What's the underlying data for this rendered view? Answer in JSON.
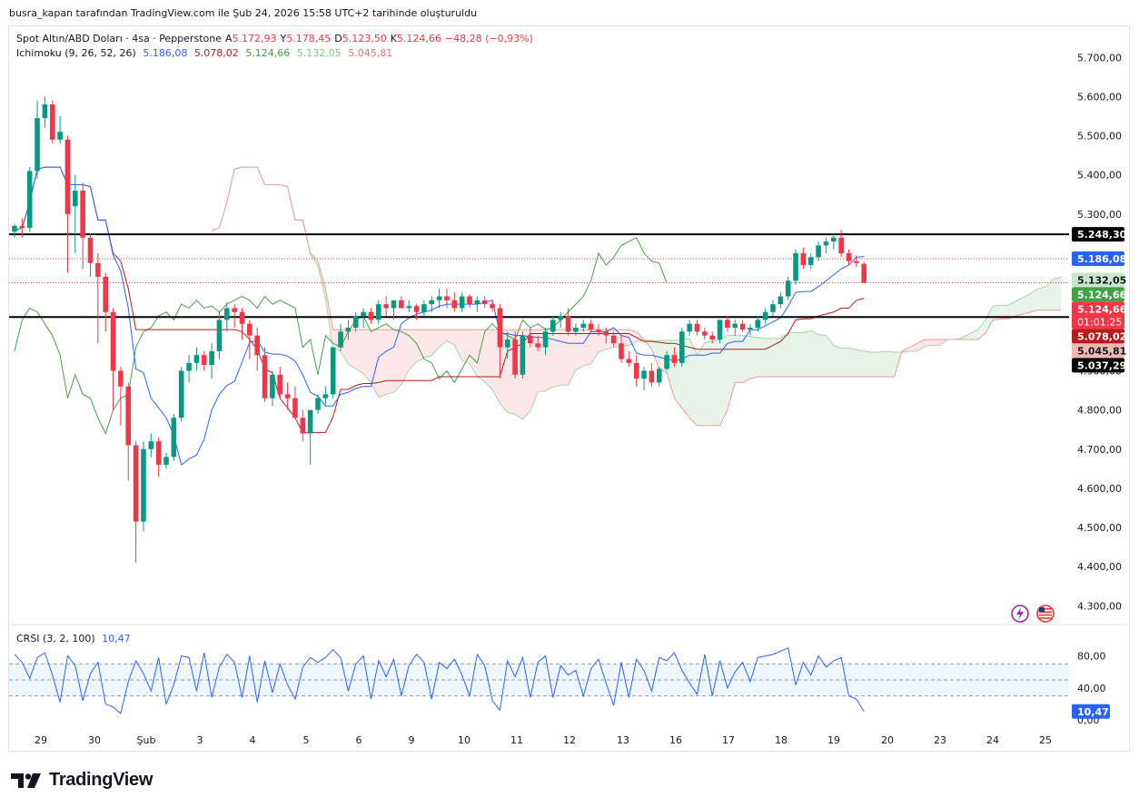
{
  "caption": "busra_kapan tarafından TradingView.com ile Şub 24, 2026 15:58 UTC+2 tarihinde oluşturuldu",
  "symbol": {
    "title": "Spot Altın/ABD Doları · 4sa · Pepperstone",
    "open_label": "A",
    "open": "5.172,93",
    "high_label": "Y",
    "high": "5.178,45",
    "low_label": "D",
    "low": "5.123,50",
    "close_label": "K",
    "close": "5.124,66",
    "change": "−48,28 (−0,93%)"
  },
  "ichimoku": {
    "title": "Ichimoku (9, 26, 52, 26)",
    "values": [
      "5.186,08",
      "5.078,02",
      "5.124,66",
      "5.132,05",
      "5.045,81"
    ],
    "colors": [
      "#2962ff",
      "#b71c1c",
      "#43a047",
      "#a5d6a7",
      "#ef9a9a"
    ]
  },
  "crsi": {
    "title": "CRSI (3, 2, 100)",
    "value": "10,47",
    "axis_ticks": [
      {
        "v": 80,
        "label": "80,00"
      },
      {
        "v": 40,
        "label": "40,00"
      },
      {
        "v": 0,
        "label": "0,00"
      }
    ],
    "band": [
      30,
      70
    ]
  },
  "price_axis": {
    "ticks": [
      {
        "v": 5700,
        "label": "5.700,00"
      },
      {
        "v": 5600,
        "label": "5.600,00"
      },
      {
        "v": 5500,
        "label": "5.500,00"
      },
      {
        "v": 5400,
        "label": "5.400,00"
      },
      {
        "v": 5300,
        "label": "5.300,00"
      },
      {
        "v": 4900,
        "label": "4.900,00"
      },
      {
        "v": 4800,
        "label": "4.800,00"
      },
      {
        "v": 4700,
        "label": "4.700,00"
      },
      {
        "v": 4600,
        "label": "4.600,00"
      },
      {
        "v": 4500,
        "label": "4.500,00"
      },
      {
        "v": 4400,
        "label": "4.400,00"
      },
      {
        "v": 4300,
        "label": "4.300,00"
      }
    ],
    "badges": [
      {
        "v": 5248.3,
        "label": "5.248,30",
        "bg": "#000000",
        "fg": "#ffffff"
      },
      {
        "v": 5186.08,
        "label": "5.186,08",
        "bg": "#2962ff",
        "fg": "#ffffff"
      },
      {
        "v": 5132.05,
        "label": "5.132,05",
        "bg": "#c8e6c9",
        "fg": "#131722"
      },
      {
        "v": 5124.66,
        "label": "5.124,66",
        "bg": "#43a047",
        "fg": "#ffffff"
      },
      {
        "v": 5124.66,
        "label": "5.124,66",
        "sub": "01:01:25",
        "bg": "#f23645",
        "fg": "#ffffff"
      },
      {
        "v": 5078.02,
        "label": "5.078,02",
        "bg": "#b71c1c",
        "fg": "#ffffff"
      },
      {
        "v": 5045.81,
        "label": "5.045,81",
        "bg": "#f5b7b1",
        "fg": "#131722"
      },
      {
        "v": 5037.29,
        "label": "5.037,29",
        "bg": "#000000",
        "fg": "#ffffff"
      }
    ]
  },
  "time_axis": [
    "29",
    "30",
    "Şub",
    "3",
    "4",
    "5",
    "6",
    "9",
    "10",
    "11",
    "12",
    "13",
    "16",
    "17",
    "18",
    "19",
    "20",
    "23",
    "24",
    "25"
  ],
  "horizontal_levels": [
    5248.3,
    5037.29
  ],
  "brand": "TradingView",
  "chart_data": {
    "type": "candlestick",
    "title": "Spot Altın/ABD Doları · 4sa · Pepperstone",
    "ylim": [
      4280,
      5740
    ],
    "candles": [
      [
        5255,
        5275,
        5240,
        5270
      ],
      [
        5270,
        5290,
        5240,
        5265
      ],
      [
        5265,
        5420,
        5255,
        5410
      ],
      [
        5410,
        5590,
        5390,
        5545
      ],
      [
        5545,
        5600,
        5520,
        5580
      ],
      [
        5580,
        5590,
        5480,
        5490
      ],
      [
        5490,
        5550,
        5480,
        5510
      ],
      [
        5490,
        5500,
        5150,
        5300
      ],
      [
        5320,
        5400,
        5200,
        5360
      ],
      [
        5360,
        5380,
        5160,
        5240
      ],
      [
        5240,
        5250,
        5140,
        5175
      ],
      [
        5175,
        5200,
        4970,
        5140
      ],
      [
        5140,
        5150,
        5000,
        5050
      ],
      [
        5050,
        5060,
        4800,
        4900
      ],
      [
        4900,
        4910,
        4760,
        4860
      ],
      [
        4860,
        4870,
        4620,
        4710
      ],
      [
        4710,
        4720,
        4410,
        4515
      ],
      [
        4515,
        4720,
        4490,
        4700
      ],
      [
        4700,
        4740,
        4680,
        4720
      ],
      [
        4720,
        4730,
        4630,
        4660
      ],
      [
        4660,
        4690,
        4650,
        4680
      ],
      [
        4680,
        4790,
        4670,
        4780
      ],
      [
        4780,
        4910,
        4770,
        4900
      ],
      [
        4900,
        4940,
        4870,
        4920
      ],
      [
        4920,
        4960,
        4900,
        4940
      ],
      [
        4940,
        4950,
        4900,
        4915
      ],
      [
        4915,
        4970,
        4880,
        4950
      ],
      [
        4950,
        5050,
        4930,
        5030
      ],
      [
        5030,
        5075,
        5000,
        5060
      ],
      [
        5060,
        5070,
        5010,
        5050
      ],
      [
        5050,
        5060,
        4980,
        5020
      ],
      [
        5020,
        5030,
        4930,
        4990
      ],
      [
        4990,
        5010,
        4900,
        4940
      ],
      [
        4940,
        4960,
        4820,
        4830
      ],
      [
        4830,
        4900,
        4810,
        4890
      ],
      [
        4890,
        4910,
        4830,
        4840
      ],
      [
        4840,
        4870,
        4800,
        4830
      ],
      [
        4830,
        4860,
        4780,
        4780
      ],
      [
        4780,
        4800,
        4720,
        4740
      ],
      [
        4740,
        4800,
        4660,
        4800
      ],
      [
        4800,
        4840,
        4790,
        4830
      ],
      [
        4830,
        4860,
        4810,
        4840
      ],
      [
        4840,
        4960,
        4830,
        4960
      ],
      [
        4960,
        5020,
        4950,
        5000
      ],
      [
        5000,
        5030,
        4980,
        5010
      ],
      [
        5010,
        5050,
        5000,
        5040
      ],
      [
        5040,
        5060,
        5010,
        5050
      ],
      [
        5050,
        5060,
        5020,
        5030
      ],
      [
        5030,
        5080,
        5020,
        5070
      ],
      [
        5070,
        5090,
        5040,
        5060
      ],
      [
        5060,
        5080,
        5030,
        5080
      ],
      [
        5080,
        5090,
        5060,
        5060
      ],
      [
        5060,
        5080,
        5050,
        5065
      ],
      [
        5065,
        5070,
        5030,
        5050
      ],
      [
        5050,
        5080,
        5040,
        5070
      ],
      [
        5070,
        5090,
        5050,
        5080
      ],
      [
        5080,
        5110,
        5060,
        5090
      ],
      [
        5090,
        5110,
        5060,
        5080
      ],
      [
        5080,
        5100,
        5050,
        5060
      ],
      [
        5060,
        5100,
        5050,
        5090
      ],
      [
        5090,
        5095,
        5060,
        5070
      ],
      [
        5070,
        5090,
        5050,
        5080
      ],
      [
        5080,
        5090,
        5060,
        5070
      ],
      [
        5070,
        5080,
        5050,
        5060
      ],
      [
        5060,
        5070,
        4880,
        4960
      ],
      [
        4960,
        5000,
        4930,
        4980
      ],
      [
        4980,
        5000,
        4880,
        4890
      ],
      [
        4890,
        5000,
        4880,
        4990
      ],
      [
        4990,
        5010,
        4960,
        4970
      ],
      [
        4970,
        4990,
        4950,
        4960
      ],
      [
        4960,
        5010,
        4940,
        5000
      ],
      [
        5000,
        5040,
        4990,
        5030
      ],
      [
        5030,
        5050,
        5010,
        5040
      ],
      [
        5040,
        5060,
        4990,
        5000
      ],
      [
        5000,
        5020,
        4990,
        5010
      ],
      [
        5010,
        5030,
        5000,
        5020
      ],
      [
        5020,
        5030,
        5000,
        5005
      ],
      [
        5005,
        5020,
        4990,
        5000
      ],
      [
        5000,
        5010,
        4970,
        4990
      ],
      [
        4990,
        5000,
        4960,
        4970
      ],
      [
        4970,
        4990,
        4920,
        4930
      ],
      [
        4930,
        4950,
        4910,
        4920
      ],
      [
        4920,
        4940,
        4860,
        4880
      ],
      [
        4880,
        4910,
        4850,
        4900
      ],
      [
        4900,
        4920,
        4860,
        4870
      ],
      [
        4870,
        4910,
        4860,
        4905
      ],
      [
        4905,
        4950,
        4900,
        4940
      ],
      [
        4940,
        4960,
        4910,
        4920
      ],
      [
        4920,
        5010,
        4910,
        5000
      ],
      [
        5000,
        5030,
        4990,
        5020
      ],
      [
        5020,
        5030,
        4990,
        5000
      ],
      [
        5000,
        5010,
        4980,
        4990
      ],
      [
        4990,
        5000,
        4970,
        4980
      ],
      [
        4980,
        5030,
        4970,
        5030
      ],
      [
        5030,
        5040,
        5000,
        5010
      ],
      [
        5010,
        5030,
        4990,
        5020
      ],
      [
        5020,
        5030,
        5000,
        5005
      ],
      [
        5005,
        5020,
        4990,
        5010
      ],
      [
        5010,
        5040,
        5000,
        5030
      ],
      [
        5030,
        5060,
        5020,
        5050
      ],
      [
        5050,
        5080,
        5040,
        5070
      ],
      [
        5070,
        5100,
        5060,
        5090
      ],
      [
        5090,
        5140,
        5080,
        5130
      ],
      [
        5130,
        5210,
        5120,
        5200
      ],
      [
        5200,
        5215,
        5160,
        5170
      ],
      [
        5170,
        5200,
        5160,
        5190
      ],
      [
        5190,
        5230,
        5180,
        5220
      ],
      [
        5220,
        5240,
        5200,
        5230
      ],
      [
        5230,
        5250,
        5210,
        5240
      ],
      [
        5240,
        5260,
        5190,
        5200
      ],
      [
        5200,
        5210,
        5170,
        5180
      ],
      [
        5180,
        5195,
        5165,
        5175
      ],
      [
        5172.93,
        5178.45,
        5123.5,
        5124.66
      ]
    ],
    "crsi_values": [
      82,
      72,
      52,
      78,
      84,
      56,
      22,
      80,
      68,
      24,
      58,
      72,
      20,
      16,
      8,
      48,
      74,
      58,
      36,
      78,
      20,
      44,
      80,
      78,
      36,
      84,
      28,
      66,
      82,
      72,
      28,
      80,
      22,
      74,
      34,
      70,
      44,
      26,
      66,
      78,
      72,
      78,
      88,
      78,
      36,
      70,
      80,
      26,
      74,
      54,
      76,
      30,
      68,
      82,
      72,
      26,
      72,
      64,
      76,
      56,
      30,
      82,
      68,
      24,
      12,
      74,
      54,
      78,
      28,
      72,
      80,
      28,
      68,
      56,
      62,
      30,
      64,
      76,
      46,
      18,
      72,
      28,
      76,
      62,
      36,
      78,
      74,
      84,
      62,
      46,
      32,
      82,
      30,
      74,
      40,
      60,
      72,
      48,
      78,
      80,
      82,
      86,
      90,
      44,
      72,
      56,
      80,
      66,
      74,
      78,
      30,
      26,
      10.47
    ]
  }
}
